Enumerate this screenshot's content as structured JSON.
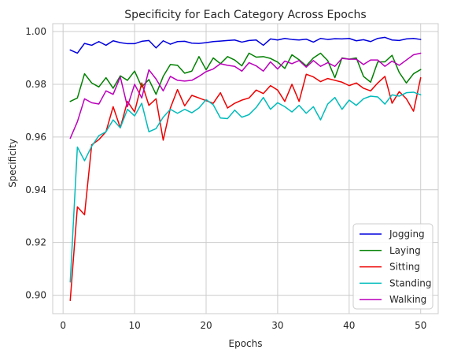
{
  "chart_data": {
    "type": "line",
    "title": "Specificity for Each Category Across Epochs",
    "xlabel": "Epochs",
    "ylabel": "Specificity",
    "xlim": [
      -1.45,
      52.45
    ],
    "ylim": [
      0.893,
      1.003
    ],
    "xticks": [
      0,
      10,
      20,
      30,
      40,
      50
    ],
    "yticks": [
      0.9,
      0.92,
      0.94,
      0.96,
      0.98,
      1.0
    ],
    "ytick_labels": [
      "0.90",
      "0.92",
      "0.94",
      "0.96",
      "0.98",
      "1.00"
    ],
    "grid": true,
    "legend_position": "lower-right",
    "x": [
      1,
      2,
      3,
      4,
      5,
      6,
      7,
      8,
      9,
      10,
      11,
      12,
      13,
      14,
      15,
      16,
      17,
      18,
      19,
      20,
      21,
      22,
      23,
      24,
      25,
      26,
      27,
      28,
      29,
      30,
      31,
      32,
      33,
      34,
      35,
      36,
      37,
      38,
      39,
      40,
      41,
      42,
      43,
      44,
      45,
      46,
      47,
      48,
      49,
      50
    ],
    "series": [
      {
        "name": "Jogging",
        "color": "#0000dd",
        "values": [
          0.993,
          0.9918,
          0.9955,
          0.9948,
          0.9962,
          0.9948,
          0.9965,
          0.9958,
          0.9954,
          0.9954,
          0.9963,
          0.9966,
          0.9938,
          0.9965,
          0.9952,
          0.9962,
          0.9963,
          0.9956,
          0.9955,
          0.9958,
          0.9962,
          0.9964,
          0.9966,
          0.9968,
          0.996,
          0.9966,
          0.9968,
          0.9948,
          0.9972,
          0.9968,
          0.9974,
          0.997,
          0.9968,
          0.9971,
          0.996,
          0.9974,
          0.997,
          0.9973,
          0.9972,
          0.9974,
          0.9965,
          0.9969,
          0.9962,
          0.9974,
          0.9978,
          0.9968,
          0.9966,
          0.9972,
          0.9974,
          0.997
        ]
      },
      {
        "name": "Laying",
        "color": "#008000",
        "values": [
          0.9735,
          0.9748,
          0.984,
          0.9805,
          0.979,
          0.9825,
          0.9785,
          0.9832,
          0.9815,
          0.985,
          0.979,
          0.9818,
          0.9762,
          0.983,
          0.9875,
          0.9872,
          0.9842,
          0.985,
          0.9905,
          0.9855,
          0.99,
          0.9878,
          0.9905,
          0.9892,
          0.987,
          0.9918,
          0.9903,
          0.9905,
          0.9898,
          0.9884,
          0.986,
          0.9912,
          0.9893,
          0.987,
          0.99,
          0.9918,
          0.989,
          0.9825,
          0.99,
          0.9895,
          0.99,
          0.983,
          0.9808,
          0.9885,
          0.9885,
          0.991,
          0.9845,
          0.9805,
          0.984,
          0.9856
        ]
      },
      {
        "name": "Sitting",
        "color": "#ee0000",
        "values": [
          0.898,
          0.9335,
          0.9305,
          0.957,
          0.959,
          0.962,
          0.9715,
          0.9635,
          0.9735,
          0.9695,
          0.9805,
          0.972,
          0.9745,
          0.9588,
          0.971,
          0.978,
          0.9718,
          0.9758,
          0.9748,
          0.9738,
          0.9728,
          0.9768,
          0.971,
          0.9728,
          0.974,
          0.9748,
          0.9778,
          0.9765,
          0.9795,
          0.9778,
          0.9735,
          0.98,
          0.9735,
          0.9838,
          0.9828,
          0.981,
          0.9822,
          0.9815,
          0.9808,
          0.9795,
          0.9805,
          0.9785,
          0.9775,
          0.9805,
          0.983,
          0.9728,
          0.9772,
          0.9745,
          0.9698,
          0.9825
        ]
      },
      {
        "name": "Standing",
        "color": "#00bbbb",
        "values": [
          0.905,
          0.9562,
          0.951,
          0.9565,
          0.9605,
          0.962,
          0.9665,
          0.9635,
          0.9705,
          0.968,
          0.9728,
          0.962,
          0.9632,
          0.9675,
          0.9705,
          0.969,
          0.9705,
          0.9692,
          0.971,
          0.9742,
          0.9722,
          0.9672,
          0.967,
          0.9702,
          0.9675,
          0.9685,
          0.9712,
          0.975,
          0.9705,
          0.973,
          0.9715,
          0.9695,
          0.972,
          0.969,
          0.9715,
          0.9665,
          0.9725,
          0.975,
          0.9705,
          0.974,
          0.972,
          0.9745,
          0.9755,
          0.9752,
          0.9725,
          0.976,
          0.9755,
          0.9768,
          0.977,
          0.976
        ]
      },
      {
        "name": "Walking",
        "color": "#bb00bb",
        "values": [
          0.9595,
          0.9658,
          0.9745,
          0.973,
          0.9725,
          0.9775,
          0.9762,
          0.9828,
          0.9715,
          0.98,
          0.9748,
          0.9855,
          0.982,
          0.9775,
          0.983,
          0.9815,
          0.9812,
          0.9815,
          0.983,
          0.9848,
          0.9858,
          0.9878,
          0.9872,
          0.9868,
          0.985,
          0.9882,
          0.987,
          0.985,
          0.9885,
          0.9858,
          0.9888,
          0.9878,
          0.989,
          0.9865,
          0.989,
          0.9868,
          0.9882,
          0.9868,
          0.9898,
          0.9895,
          0.9895,
          0.9875,
          0.9892,
          0.9892,
          0.9868,
          0.9888,
          0.9872,
          0.9892,
          0.9912,
          0.9918
        ]
      }
    ]
  }
}
